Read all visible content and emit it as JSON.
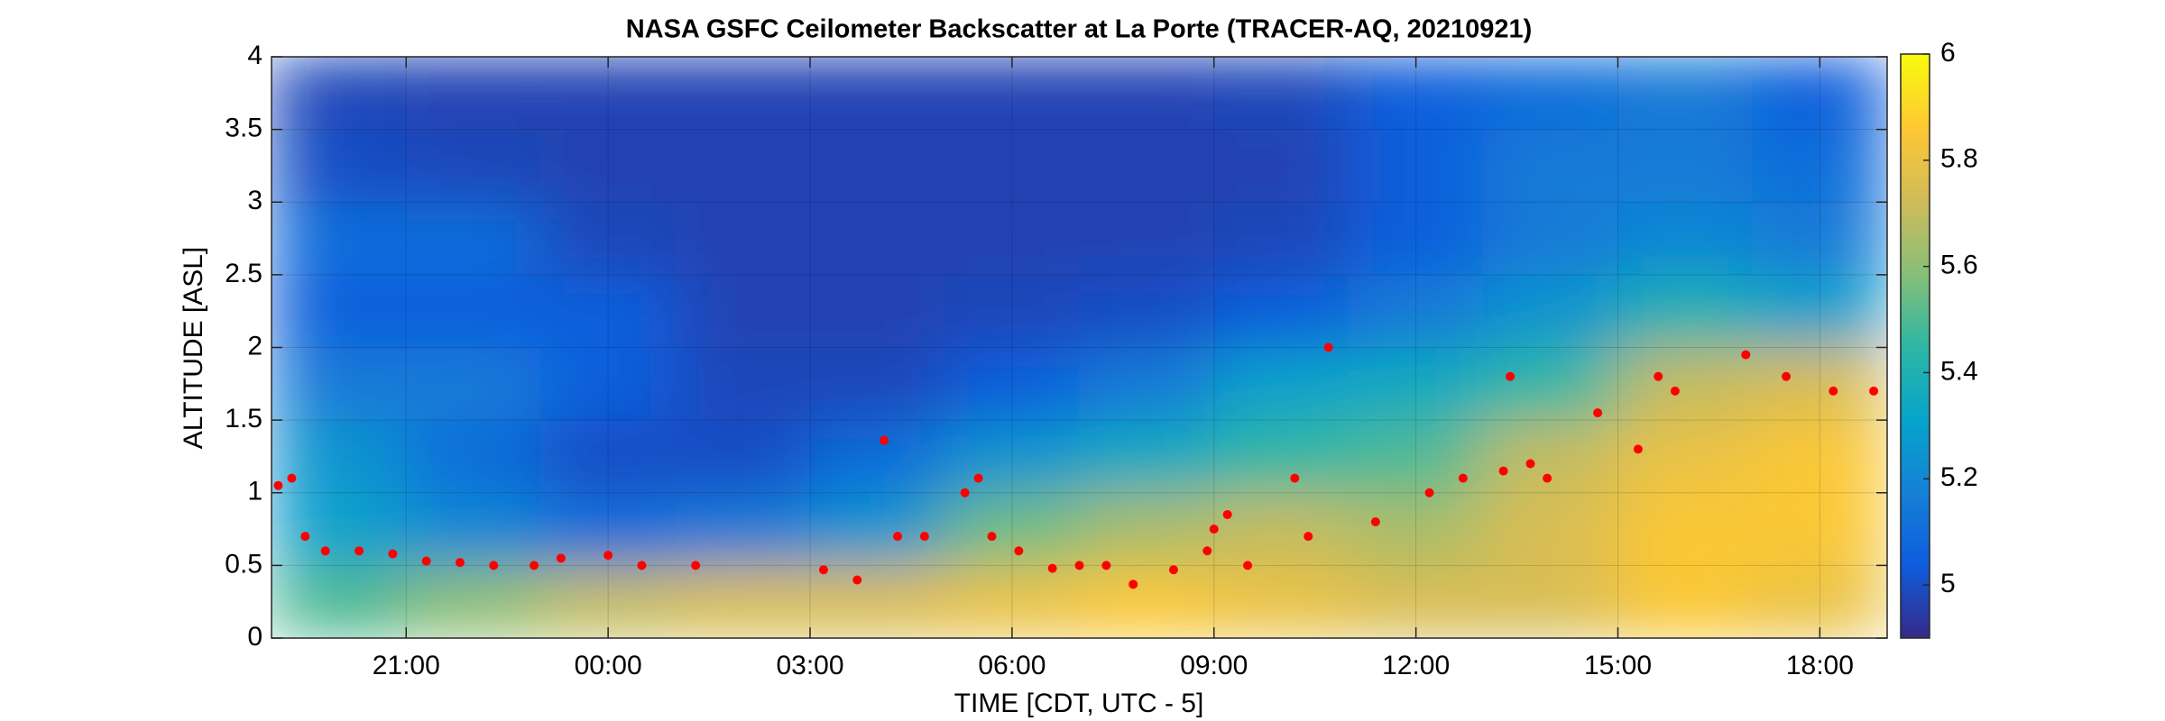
{
  "chart_data": {
    "type": "heatmap",
    "title": "NASA GSFC Ceilometer Backscatter at La Porte (TRACER-AQ, 20210921)",
    "xlabel": "TIME [CDT, UTC - 5]",
    "ylabel": "ALTITUDE [ASL]",
    "xlim": [
      19,
      43
    ],
    "xticks": [
      {
        "value": 21,
        "label": "21:00"
      },
      {
        "value": 24,
        "label": "00:00"
      },
      {
        "value": 27,
        "label": "03:00"
      },
      {
        "value": 30,
        "label": "06:00"
      },
      {
        "value": 33,
        "label": "09:00"
      },
      {
        "value": 36,
        "label": "12:00"
      },
      {
        "value": 39,
        "label": "15:00"
      },
      {
        "value": 42,
        "label": "18:00"
      }
    ],
    "ylim": [
      0,
      4
    ],
    "yticks": [
      0,
      0.5,
      1,
      1.5,
      2,
      2.5,
      3,
      3.5,
      4
    ],
    "grid": true,
    "colormap": "parula",
    "clim": [
      4.9,
      6
    ],
    "cticks": [
      5,
      5.2,
      5.4,
      5.6,
      5.8,
      6
    ],
    "x_edges": [
      19,
      21,
      23,
      25,
      27,
      29,
      31,
      33,
      35,
      37,
      39,
      41,
      43
    ],
    "y_edges": [
      0,
      0.5,
      1,
      1.5,
      2,
      2.5,
      3,
      3.5,
      4
    ],
    "z": [
      [
        5.5,
        5.6,
        5.7,
        5.75,
        5.75,
        5.8,
        5.85,
        5.8,
        5.75,
        5.75,
        5.85,
        5.8
      ],
      [
        5.3,
        5.2,
        5.1,
        5.15,
        5.25,
        5.55,
        5.65,
        5.7,
        5.65,
        5.75,
        5.85,
        5.85
      ],
      [
        5.25,
        5.1,
        5.0,
        5.0,
        5.1,
        5.25,
        5.35,
        5.45,
        5.5,
        5.7,
        5.8,
        5.85
      ],
      [
        5.15,
        5.15,
        5.05,
        4.98,
        4.98,
        5.05,
        5.15,
        5.3,
        5.35,
        5.45,
        5.7,
        5.75
      ],
      [
        5.05,
        5.05,
        5.05,
        4.97,
        4.97,
        4.98,
        5.0,
        5.05,
        5.15,
        5.25,
        5.4,
        5.3
      ],
      [
        5.1,
        5.1,
        4.98,
        4.97,
        4.97,
        4.97,
        4.97,
        4.98,
        5.05,
        5.15,
        5.2,
        5.15
      ],
      [
        5.0,
        4.98,
        4.97,
        4.97,
        4.97,
        4.97,
        4.97,
        4.97,
        5.05,
        5.15,
        5.15,
        5.1
      ],
      [
        4.98,
        4.97,
        4.97,
        4.97,
        4.97,
        4.97,
        4.97,
        4.98,
        5.05,
        5.1,
        5.15,
        5.05
      ]
    ],
    "points": {
      "color": "#ff0000",
      "x": [
        19.1,
        19.3,
        19.5,
        19.8,
        20.3,
        20.8,
        21.3,
        21.8,
        22.3,
        22.9,
        23.3,
        24.0,
        24.5,
        25.3,
        27.2,
        27.7,
        28.1,
        28.3,
        28.7,
        29.3,
        29.5,
        29.7,
        30.1,
        30.6,
        31.0,
        31.4,
        31.8,
        32.4,
        32.9,
        33.0,
        33.2,
        33.5,
        34.2,
        34.4,
        34.7,
        35.4,
        36.2,
        36.7,
        37.3,
        37.4,
        37.7,
        37.95,
        38.7,
        39.3,
        39.6,
        39.85,
        40.9,
        41.5,
        42.2,
        42.8
      ],
      "y": [
        1.05,
        1.1,
        0.7,
        0.6,
        0.6,
        0.58,
        0.53,
        0.52,
        0.5,
        0.5,
        0.55,
        0.57,
        0.5,
        0.5,
        0.47,
        0.4,
        1.36,
        0.7,
        0.7,
        1.0,
        1.1,
        0.7,
        0.6,
        0.48,
        0.5,
        0.5,
        0.37,
        0.47,
        0.6,
        0.75,
        0.85,
        0.5,
        1.1,
        0.7,
        2.0,
        0.8,
        1.0,
        1.1,
        1.15,
        1.8,
        1.2,
        1.1,
        1.55,
        1.3,
        1.8,
        1.7,
        1.95,
        1.8,
        1.7,
        1.7
      ]
    }
  }
}
